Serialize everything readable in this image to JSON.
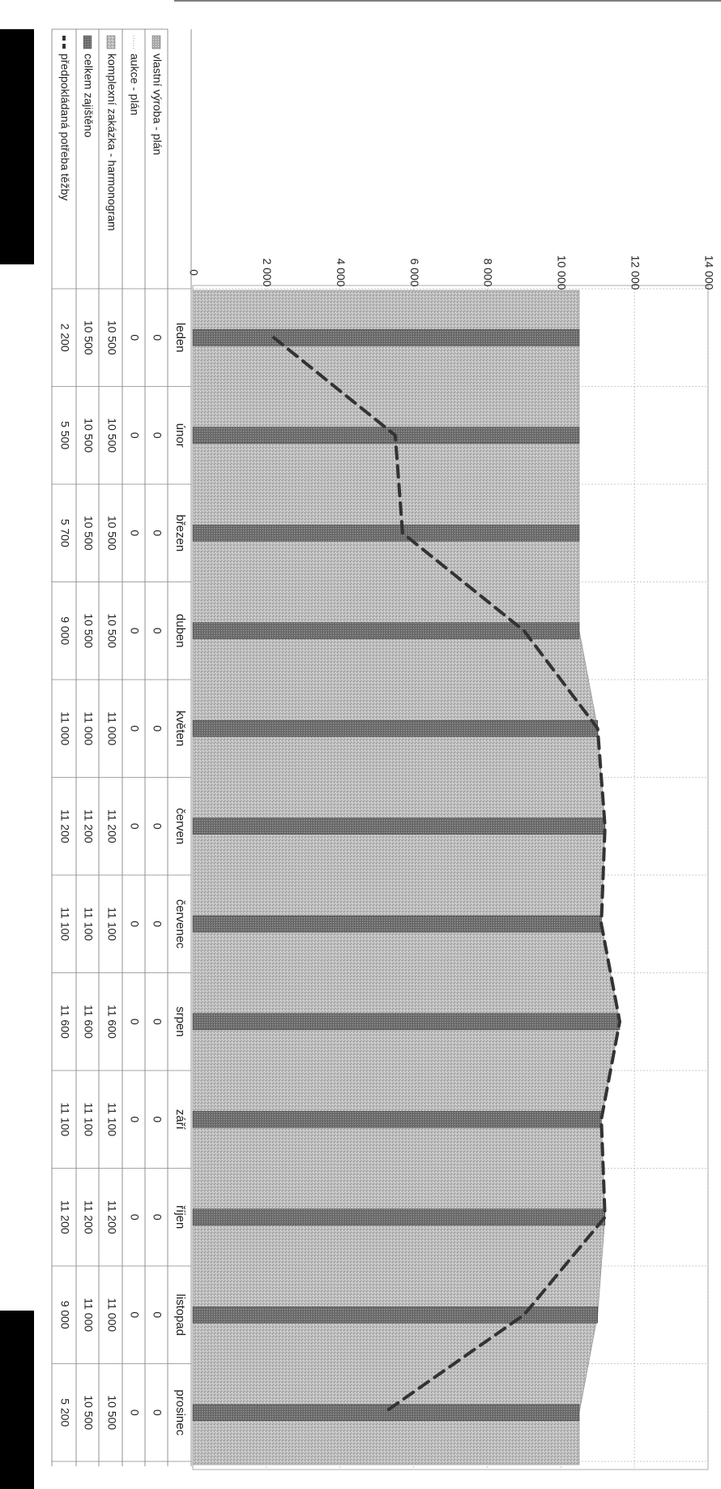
{
  "chart_data": {
    "type": "bar",
    "orientation": "rotated-90-clockwise",
    "categories": [
      "leden",
      "únor",
      "březen",
      "duben",
      "květen",
      "červen",
      "červenec",
      "srpen",
      "září",
      "říjen",
      "listopad",
      "prosinec"
    ],
    "yticks": [
      "0",
      "2 000",
      "4 000",
      "6 000",
      "8 000",
      "10 000",
      "12 000",
      "14 000"
    ],
    "ylim": [
      0,
      14000
    ],
    "series": [
      {
        "name": "vlastní výroba - plán",
        "kind": "area",
        "color": "#c4c4c4",
        "values": [
          0,
          0,
          0,
          0,
          0,
          0,
          0,
          0,
          0,
          0,
          0,
          0
        ],
        "labels": [
          "0",
          "0",
          "0",
          "0",
          "0",
          "0",
          "0",
          "0",
          "0",
          "0",
          "0",
          "0"
        ]
      },
      {
        "name": "aukce - plán",
        "kind": "area",
        "color": "#e6e6e6",
        "values": [
          0,
          0,
          0,
          0,
          0,
          0,
          0,
          0,
          0,
          0,
          0,
          0
        ],
        "labels": [
          "0",
          "0",
          "0",
          "0",
          "0",
          "0",
          "0",
          "0",
          "0",
          "0",
          "0",
          "0"
        ]
      },
      {
        "name": "komplexní zakázka - harmonogram",
        "kind": "area",
        "color": "#b9b9b9",
        "values": [
          10500,
          10500,
          10500,
          10500,
          11000,
          11200,
          11100,
          11600,
          11100,
          11200,
          11000,
          10500
        ],
        "labels": [
          "10 500",
          "10 500",
          "10 500",
          "10 500",
          "11 000",
          "11 200",
          "11 100",
          "11 600",
          "11 100",
          "11 200",
          "11 000",
          "10 500"
        ]
      },
      {
        "name": "celkem zajištěno",
        "kind": "bar",
        "color": "#7a7a7a",
        "values": [
          10500,
          10500,
          10500,
          10500,
          11000,
          11200,
          11100,
          11600,
          11100,
          11200,
          11000,
          10500
        ],
        "labels": [
          "10 500",
          "10 500",
          "10 500",
          "10 500",
          "11 000",
          "11 200",
          "11 100",
          "11 600",
          "11 100",
          "11 200",
          "11 000",
          "10 500"
        ]
      },
      {
        "name": "předpokládaná potřeba těžby",
        "kind": "line",
        "color": "#3a3a3a",
        "values": [
          2200,
          5500,
          5700,
          9000,
          11000,
          11200,
          11100,
          11600,
          11100,
          11200,
          9000,
          5200
        ],
        "labels": [
          "2 200",
          "5 500",
          "5 700",
          "9 000",
          "11 000",
          "11 200",
          "11 100",
          "11 600",
          "11 100",
          "11 200",
          "9 000",
          "5 200"
        ]
      }
    ],
    "grid": true,
    "legend": "data-table"
  }
}
